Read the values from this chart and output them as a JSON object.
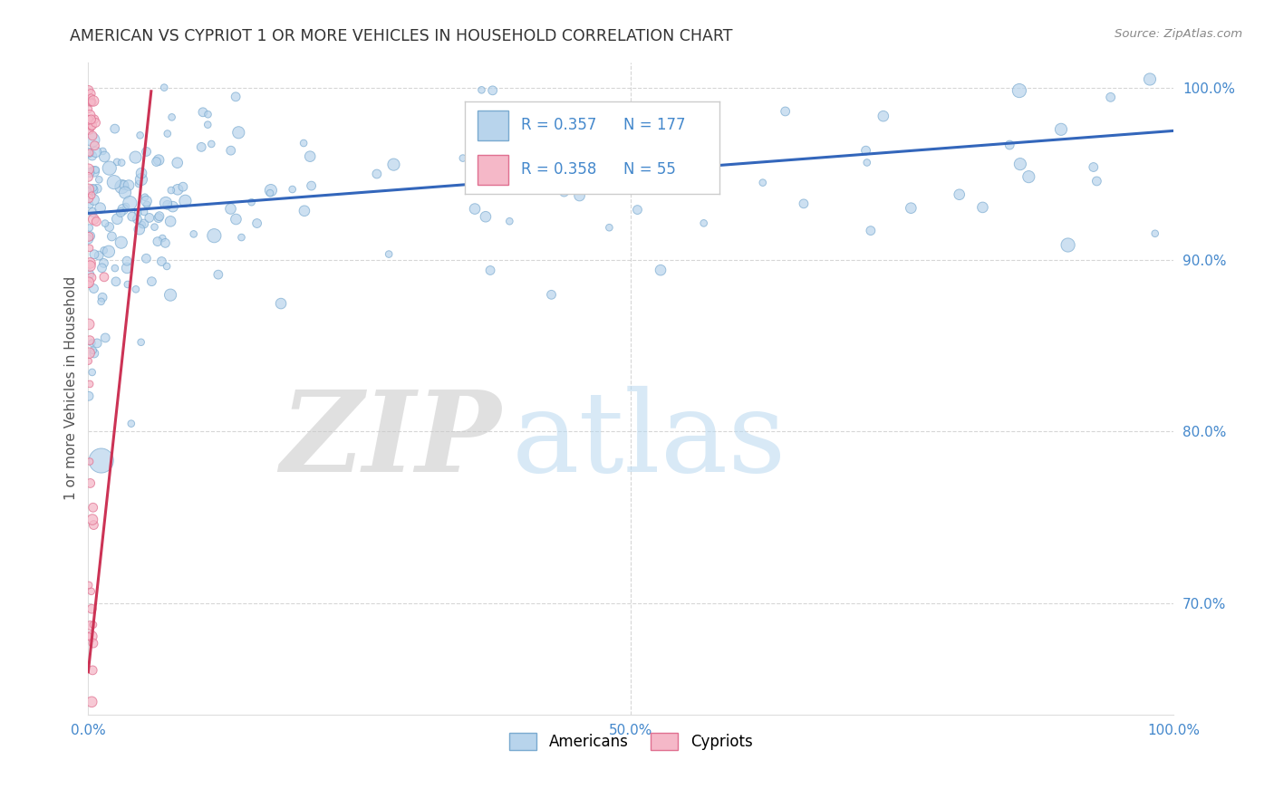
{
  "title": "AMERICAN VS CYPRIOT 1 OR MORE VEHICLES IN HOUSEHOLD CORRELATION CHART",
  "source": "Source: ZipAtlas.com",
  "ylabel": "1 or more Vehicles in Household",
  "legend_american_R": "0.357",
  "legend_american_N": "177",
  "legend_cypriot_R": "0.358",
  "legend_cypriot_N": "55",
  "american_color": "#b8d4ec",
  "american_edge": "#7aaad0",
  "cypriot_color": "#f5b8c8",
  "cypriot_edge": "#e07090",
  "trend_american_color": "#3366bb",
  "trend_cypriot_color": "#cc3355",
  "background_color": "#ffffff",
  "grid_color": "#cccccc",
  "axis_label_color": "#4488cc",
  "title_color": "#333333",
  "source_color": "#888888",
  "ylabel_color": "#555555",
  "xlim": [
    0.0,
    1.0
  ],
  "ylim": [
    0.635,
    1.015
  ],
  "ytick_positions": [
    0.7,
    0.8,
    0.9,
    1.0
  ],
  "yticklabels": [
    "70.0%",
    "80.0%",
    "90.0%",
    "100.0%"
  ],
  "xticklabels": [
    "0.0%",
    "",
    "",
    "",
    "",
    "50.0%",
    "",
    "",
    "",
    "",
    "100.0%"
  ],
  "trend_am_x0": 0.0,
  "trend_am_y0": 0.927,
  "trend_am_x1": 1.0,
  "trend_am_y1": 0.975,
  "trend_cy_x0": 0.0,
  "trend_cy_y0": 0.66,
  "trend_cy_x1": 0.058,
  "trend_cy_y1": 0.998,
  "watermark_zip_color": "#c8c8c8",
  "watermark_atlas_color": "#b8d8f0",
  "legend_box_color": "#f0f0f0",
  "legend_edge_color": "#cccccc"
}
